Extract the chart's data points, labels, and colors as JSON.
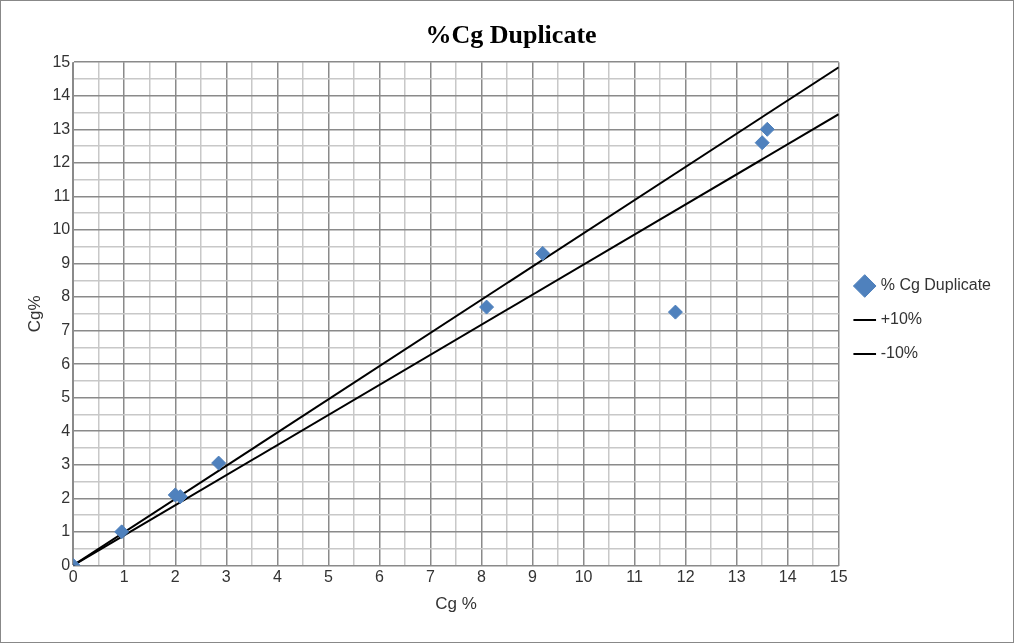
{
  "chart_data": {
    "type": "scatter",
    "title": "%Cg Duplicate",
    "xlabel": "Cg %",
    "ylabel": "Cg%",
    "xlim": [
      0,
      15
    ],
    "ylim": [
      0,
      15
    ],
    "xticks": [
      0,
      {
        "value": 0.5,
        "label": null
      },
      1,
      {
        "value": 1.5,
        "label": null
      },
      2,
      {
        "value": 2.5,
        "label": null
      },
      3,
      {
        "value": 3.5,
        "label": null
      },
      4,
      {
        "value": 4.5,
        "label": null
      },
      5,
      {
        "value": 5.5,
        "label": null
      },
      6,
      {
        "value": 6.5,
        "label": null
      },
      7,
      {
        "value": 7.5,
        "label": null
      },
      8,
      {
        "value": 8.5,
        "label": null
      },
      9,
      {
        "value": 9.5,
        "label": null
      },
      10,
      {
        "value": 10.5,
        "label": null
      },
      11,
      {
        "value": 11.5,
        "label": null
      },
      12,
      {
        "value": 12.5,
        "label": null
      },
      13,
      {
        "value": 13.5,
        "label": null
      },
      14,
      {
        "value": 14.5,
        "label": null
      },
      15
    ],
    "yticks": [
      0,
      {
        "value": 0.5,
        "label": null
      },
      1,
      {
        "value": 1.5,
        "label": null
      },
      2,
      {
        "value": 2.5,
        "label": null
      },
      3,
      {
        "value": 3.5,
        "label": null
      },
      4,
      {
        "value": 4.5,
        "label": null
      },
      5,
      {
        "value": 5.5,
        "label": null
      },
      6,
      {
        "value": 6.5,
        "label": null
      },
      7,
      {
        "value": 7.5,
        "label": null
      },
      8,
      {
        "value": 8.5,
        "label": null
      },
      9,
      {
        "value": 9.5,
        "label": null
      },
      10,
      {
        "value": 10.5,
        "label": null
      },
      11,
      {
        "value": 11.5,
        "label": null
      },
      12,
      {
        "value": 12.5,
        "label": null
      },
      13,
      {
        "value": 13.5,
        "label": null
      },
      14,
      {
        "value": 14.5,
        "label": null
      },
      15
    ],
    "grid": true,
    "legend": "right",
    "marker": "diamond",
    "series": [
      {
        "name": "% Cg Duplicate",
        "color": "#4f81bd",
        "x": [
          0,
          0.95,
          2.0,
          2.1,
          2.85,
          8.1,
          9.2,
          11.8,
          13.5,
          13.6
        ],
        "values": [
          0,
          1.0,
          2.1,
          2.05,
          3.05,
          7.7,
          9.3,
          7.55,
          12.6,
          13.0
        ]
      },
      {
        "name": "+10%",
        "type": "line",
        "color": "#000000",
        "marker": "none",
        "x": [
          0,
          15
        ],
        "values": [
          0,
          14.85
        ]
      },
      {
        "name": "-10%",
        "type": "line",
        "color": "#000000",
        "marker": "none",
        "x": [
          0,
          15
        ],
        "values": [
          0,
          13.45
        ]
      }
    ]
  }
}
